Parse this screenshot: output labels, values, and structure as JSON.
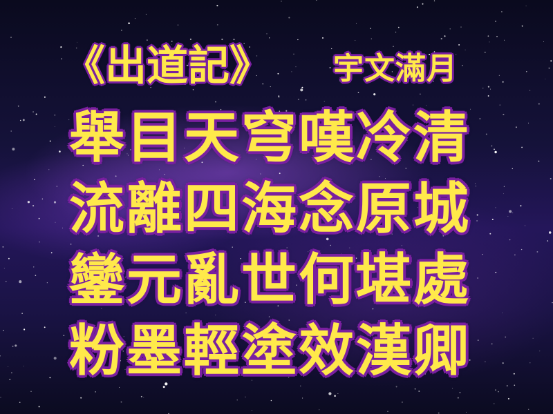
{
  "colors": {
    "text": "#ffe94a",
    "outline": "#7a1fa0",
    "background": "#1a1345"
  },
  "poem": {
    "title": "《出道記》",
    "author": "宇文滿月",
    "lines": [
      "舉目天穹嘆冷清",
      "流離四海念原城",
      "鑾元亂世何堪處",
      "粉墨輕塗效漢卿"
    ]
  }
}
